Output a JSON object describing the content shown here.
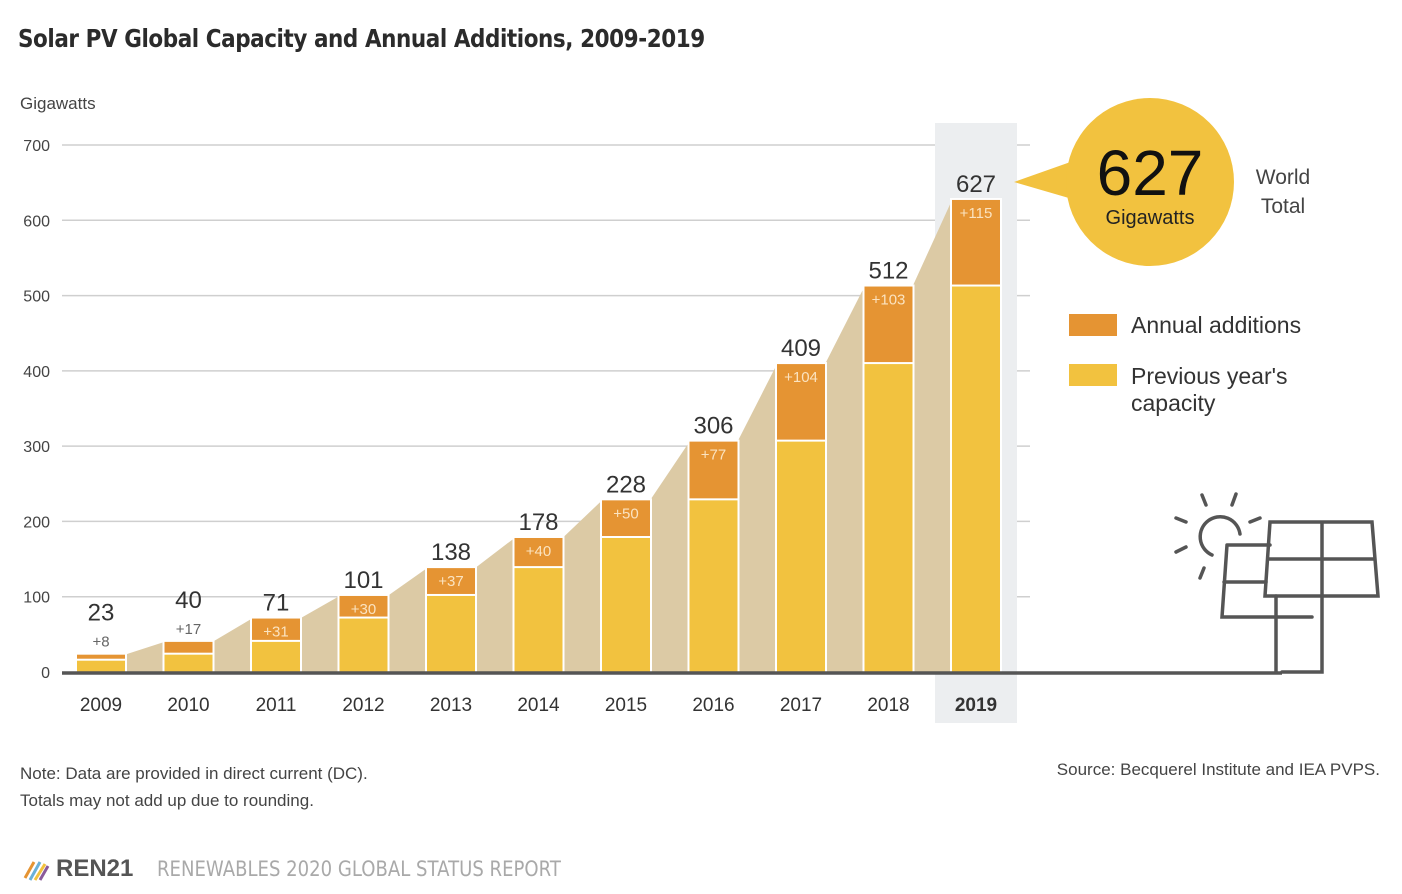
{
  "chart_data": {
    "type": "bar",
    "stacked": true,
    "title": "Solar PV Global Capacity and Annual Additions, 2009-2019",
    "ylabel": "Gigawatts",
    "xlabel": "",
    "ylim": [
      0,
      700
    ],
    "yticks": [
      0,
      100,
      200,
      300,
      400,
      500,
      600,
      700
    ],
    "ytick_labels": [
      "0",
      "100",
      "200",
      "300",
      "400",
      "500",
      "600",
      "700"
    ],
    "grid": true,
    "categories": [
      "2009",
      "2010",
      "2011",
      "2012",
      "2013",
      "2014",
      "2015",
      "2016",
      "2017",
      "2018",
      "2019"
    ],
    "series": [
      {
        "name": "Previous year's capacity",
        "color": "#f2c23f",
        "values": [
          15,
          23,
          40,
          71,
          101,
          138,
          178,
          228,
          306,
          409,
          512
        ]
      },
      {
        "name": "Annual additions",
        "color": "#e59433",
        "values": [
          8,
          17,
          31,
          30,
          37,
          40,
          50,
          77,
          104,
          103,
          115
        ]
      }
    ],
    "totals": [
      23,
      40,
      71,
      101,
      138,
      178,
      228,
      306,
      409,
      512,
      627
    ],
    "total_labels": [
      "23",
      "40",
      "71",
      "101",
      "138",
      "178",
      "228",
      "306",
      "409",
      "512",
      "627"
    ],
    "addition_labels": [
      "+8",
      "+17",
      "+31",
      "+30",
      "+37",
      "+40",
      "+50",
      "+77",
      "+104",
      "+103",
      "+115"
    ],
    "highlight_category": "2019",
    "legend": {
      "placement": "right",
      "items": [
        {
          "label": "Annual additions",
          "color": "#e59433"
        },
        {
          "label_line1": "Previous year's",
          "label_line2": "capacity",
          "color": "#f2c23f"
        }
      ]
    },
    "annotation": {
      "value": "627",
      "unit": "Gigawatts",
      "side_line1": "World",
      "side_line2": "Total",
      "color": "#f2c23f"
    },
    "area_color": "#dccaa5",
    "grid_color": "#cfcfcf",
    "axis_color": "#555555"
  },
  "notes": {
    "line1": "Note: Data are provided in direct current (DC).",
    "line2": "Totals may not add up due to rounding.",
    "source": "Source: Becquerel Institute and IEA PVPS."
  },
  "footer": {
    "brand": "REN21",
    "report": "RENEWABLES 2020 GLOBAL STATUS REPORT"
  }
}
